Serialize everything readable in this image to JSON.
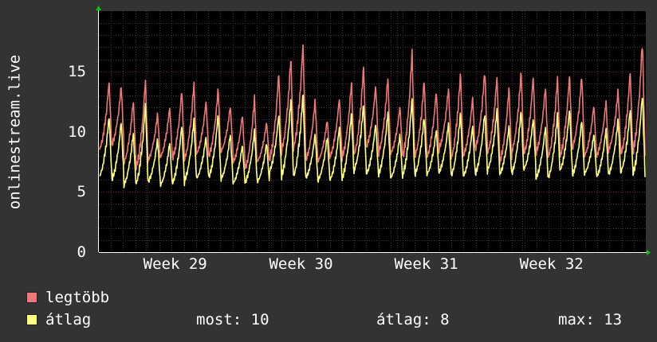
{
  "chart_data": {
    "type": "line",
    "ylabel": "onlinestream.live",
    "ylim": [
      0,
      20
    ],
    "yticks": [
      0,
      5,
      10,
      15
    ],
    "xticks": [
      "Week 29",
      "Week 30",
      "Week 31",
      "Week 32"
    ],
    "grid": true,
    "legend_placement": "bottom-left",
    "series": [
      {
        "name": "legtöbb",
        "color": "#f07878",
        "approx_daily_peaks": [
          14.2,
          13.8,
          12.6,
          14.3,
          11.5,
          12.0,
          13.5,
          14.0,
          12.5,
          13.6,
          12.1,
          11.4,
          12.8,
          10.8,
          14.9,
          16.2,
          17.3,
          12.6,
          11.0,
          12.8,
          14.1,
          15.4,
          13.8,
          14.5,
          12.1,
          16.7,
          14.3,
          13.4,
          13.6,
          14.9,
          12.8,
          15.1,
          14.5,
          13.7,
          15.0,
          14.6,
          13.7,
          14.5,
          14.7,
          14.6,
          12.2,
          12.5,
          13.5,
          15.0,
          17.5
        ],
        "approx_daily_lows": [
          8.2,
          8.6,
          7.1,
          6.5,
          7.4,
          7.6,
          7.4,
          7.3,
          7.9,
          7.6,
          8.1,
          7.2,
          6.5,
          7.3,
          7.2,
          7.9,
          8.1,
          7.3,
          7.3,
          7.6,
          7.5,
          7.6,
          8.4,
          7.8,
          7.9,
          7.3,
          7.5,
          7.5,
          8.3,
          7.3,
          7.7,
          8.2,
          7.8,
          7.1,
          7.9,
          7.7,
          7.9,
          7.4,
          7.6,
          8.3,
          7.7,
          7.7,
          8.2,
          7.6,
          7.8
        ]
      },
      {
        "name": "átlag",
        "color": "#ffff80",
        "approx_daily_peaks": [
          11.3,
          10.9,
          9.9,
          12.3,
          9.4,
          9.1,
          10.6,
          11.0,
          9.6,
          11.5,
          9.8,
          8.9,
          10.1,
          9.1,
          11.4,
          12.8,
          13.2,
          9.8,
          9.6,
          10.4,
          11.6,
          12.3,
          10.7,
          11.6,
          9.8,
          12.8,
          11.3,
          10.2,
          10.7,
          11.6,
          10.5,
          11.6,
          11.8,
          10.5,
          11.8,
          11.1,
          10.4,
          11.5,
          11.9,
          11.0,
          9.8,
          10.2,
          11.1,
          11.9,
          13.1
        ],
        "approx_daily_lows": [
          6.0,
          5.7,
          5.3,
          5.2,
          5.6,
          5.3,
          5.4,
          5.6,
          5.9,
          5.9,
          5.8,
          5.5,
          5.5,
          5.6,
          6.4,
          5.9,
          5.8,
          5.9,
          5.7,
          5.7,
          5.8,
          6.5,
          6.2,
          6.1,
          5.9,
          6.0,
          6.1,
          6.2,
          6.4,
          6.0,
          6.0,
          6.2,
          6.5,
          6.2,
          6.2,
          6.6,
          5.9,
          5.8,
          6.5,
          6.1,
          6.3,
          6.0,
          6.2,
          6.3,
          6.1
        ]
      }
    ]
  },
  "legend": {
    "items": [
      {
        "name": "legtöbb",
        "color": "#f07878"
      },
      {
        "name": "átlag",
        "color": "#ffff80"
      }
    ]
  },
  "stats": {
    "most": "most: 10",
    "atlag": "átlag: 8",
    "max": "max: 13"
  }
}
